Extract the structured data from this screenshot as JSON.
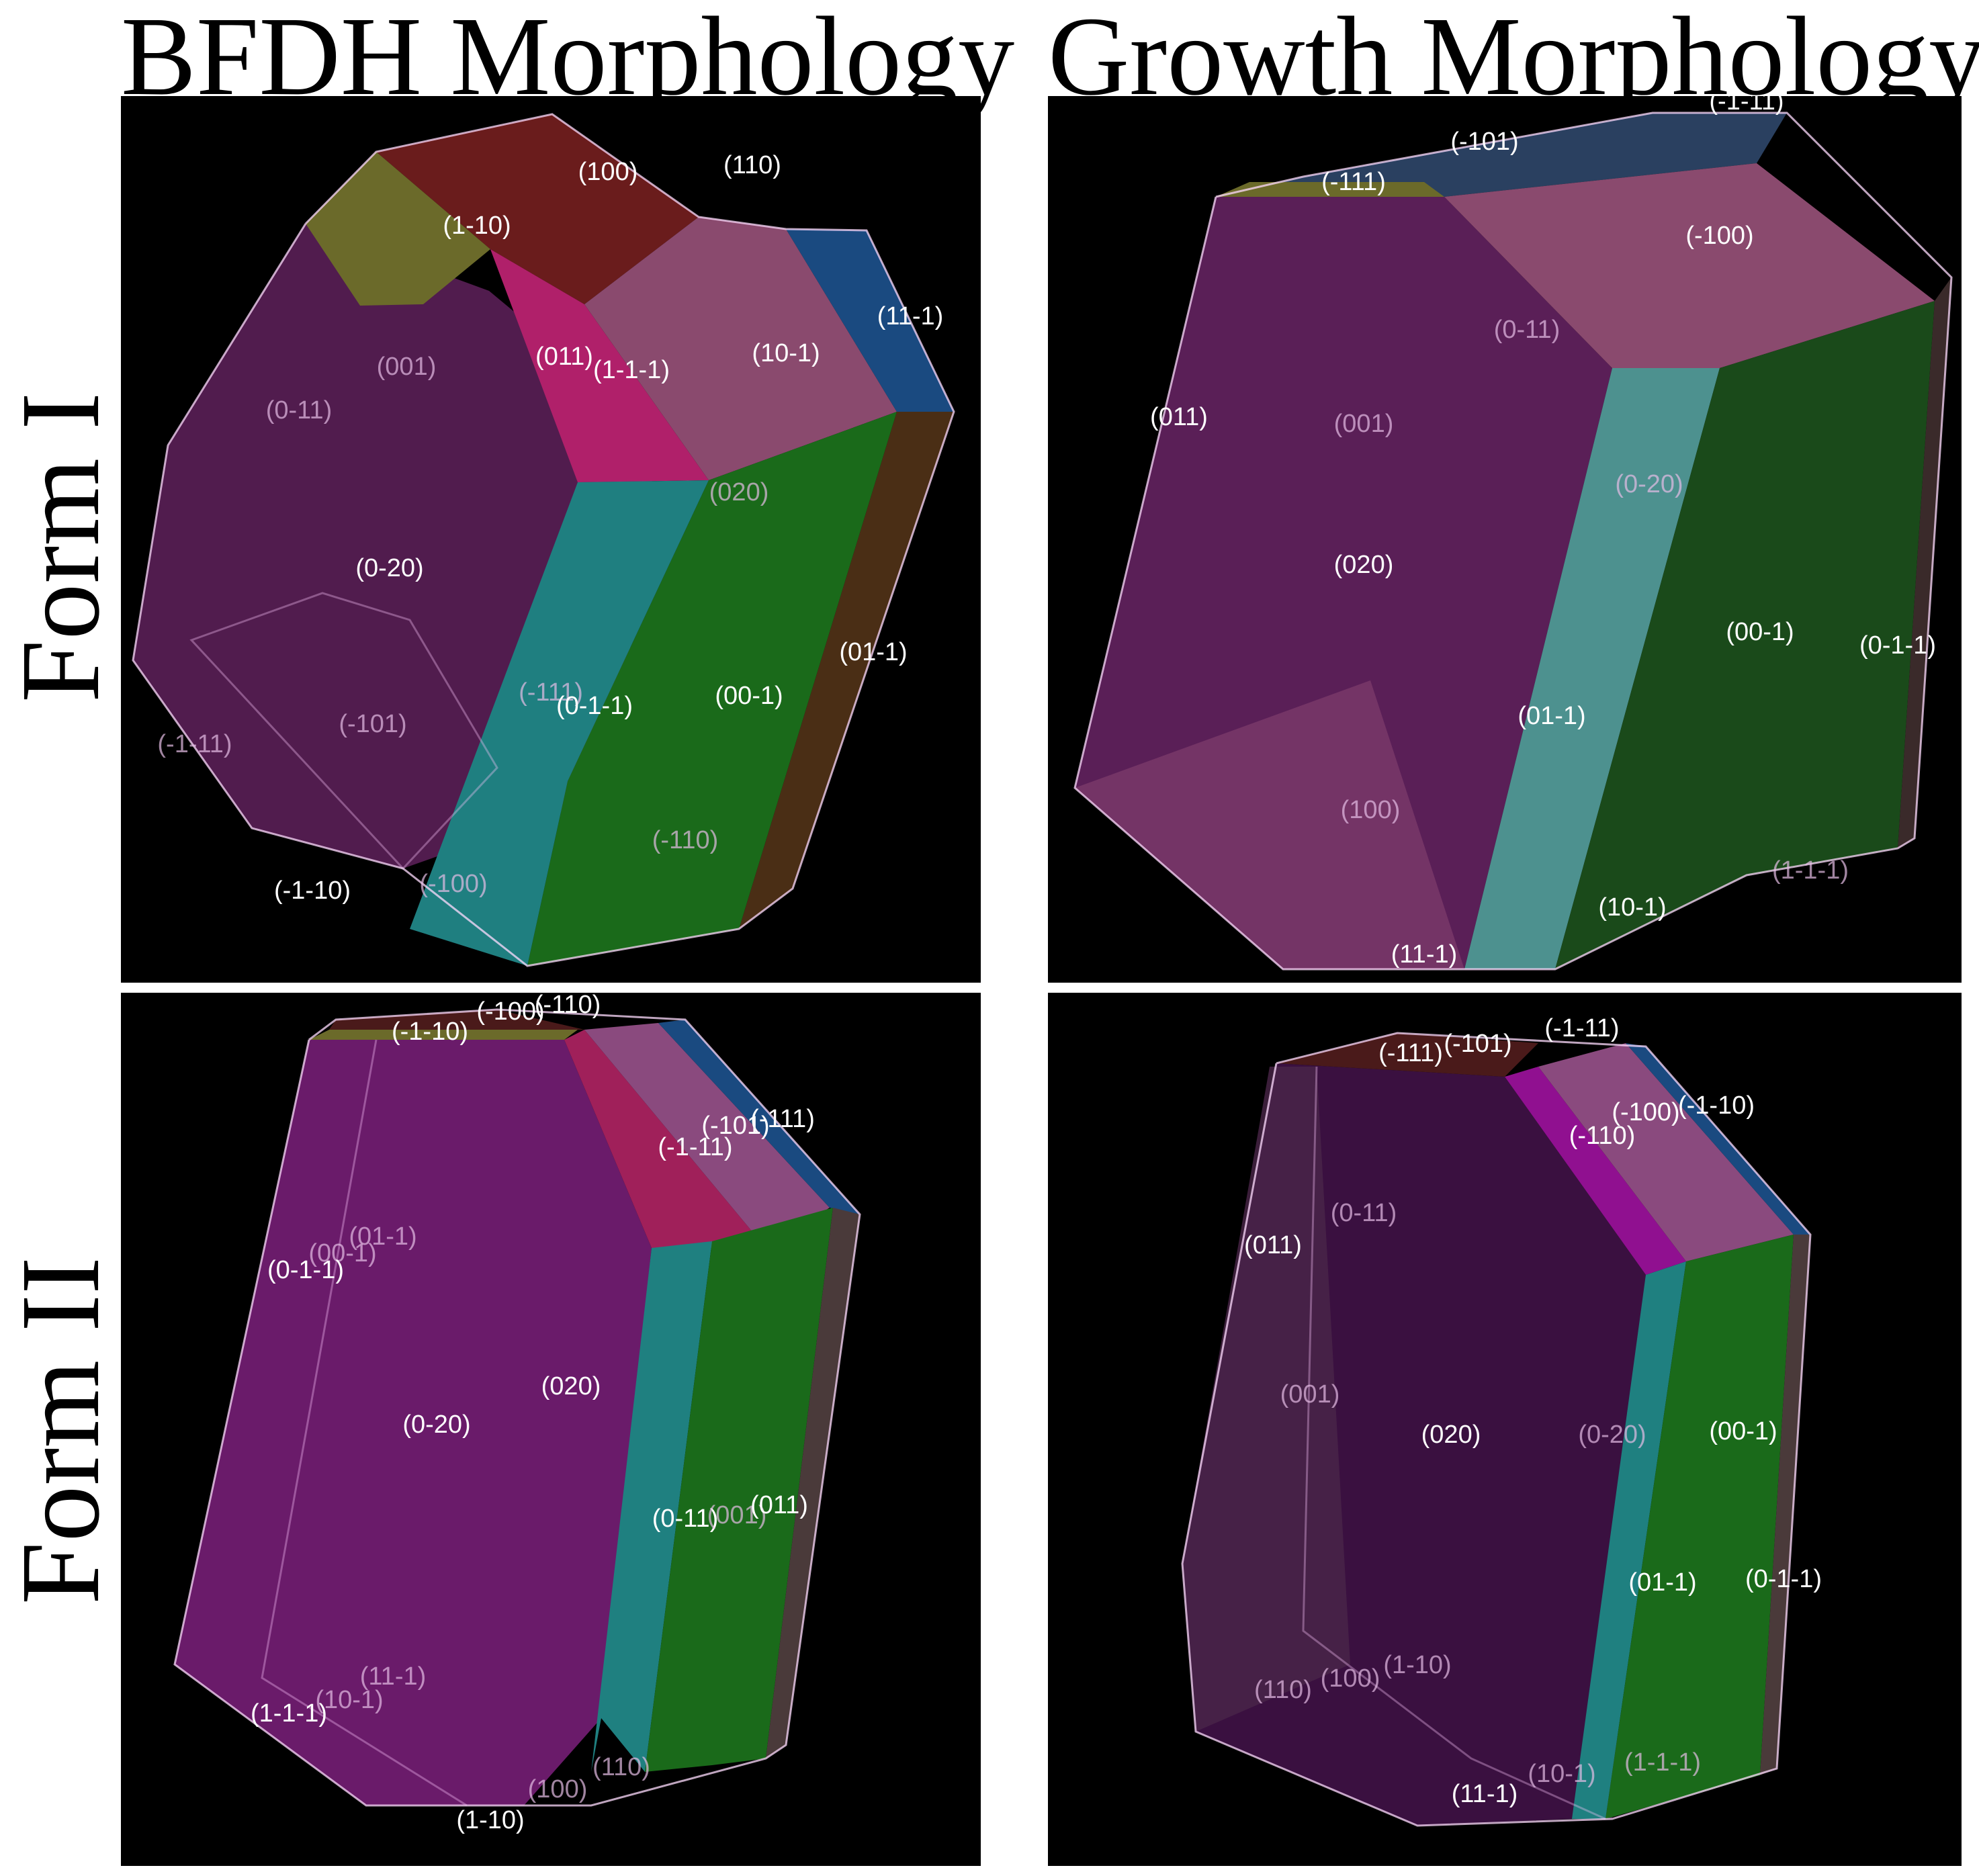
{
  "columns": [
    "BFDH Morphology",
    "Growth Morphology"
  ],
  "rows": [
    "Form I",
    "Form II"
  ],
  "panels": {
    "bfdh_form1": {
      "labels": [
        "(100)",
        "(110)",
        "(1-10)",
        "(11-1)",
        "(011)",
        "(1-1-1)",
        "(10-1)",
        "(001)",
        "(0-11)",
        "(020)",
        "(0-20)",
        "(01-1)",
        "(-111)",
        "(0-1-1)",
        "(00-1)",
        "(-1-11)",
        "(-101)",
        "(-110)",
        "(-1-10)",
        "(-100)"
      ]
    },
    "growth_form1": {
      "labels": [
        "(-1-11)",
        "(-101)",
        "(-111)",
        "(-100)",
        "(0-11)",
        "(011)",
        "(001)",
        "(0-20)",
        "(020)",
        "(00-1)",
        "(0-1-1)",
        "(01-1)",
        "(100)",
        "(1-1-1)",
        "(10-1)",
        "(11-1)"
      ]
    },
    "bfdh_form2": {
      "labels": [
        "(-100)",
        "(-110)",
        "(-1-10)",
        "(-101)",
        "(-111)",
        "(-1-11)",
        "(00-1)",
        "(01-1)",
        "(0-1-1)",
        "(020)",
        "(0-20)",
        "(0-11)",
        "(001)",
        "(011)",
        "(11-1)",
        "(10-1)",
        "(1-1-1)",
        "(110)",
        "(100)",
        "(1-10)"
      ]
    },
    "growth_form2": {
      "labels": [
        "(-1-11)",
        "(-101)",
        "(-111)",
        "(-100)",
        "(-1-10)",
        "(-110)",
        "(0-11)",
        "(011)",
        "(001)",
        "(020)",
        "(0-20)",
        "(00-1)",
        "(0-1-1)",
        "(01-1)",
        "(110)",
        "(100)",
        "(1-10)",
        "(10-1)",
        "(11-1)",
        "(1-1-1)"
      ]
    }
  },
  "colors": {
    "background": "#000000",
    "magenta_face": "#5a1f57",
    "pink_face": "#8a4a6e",
    "red_face": "#6a1c1c",
    "olive_face": "#6b6a2a",
    "blue_face": "#1a4a80",
    "cyan_face": "#1f7f80",
    "green_face": "#1a6a1a",
    "hotpink_face": "#b0206a",
    "brown_face": "#4a2e15"
  }
}
